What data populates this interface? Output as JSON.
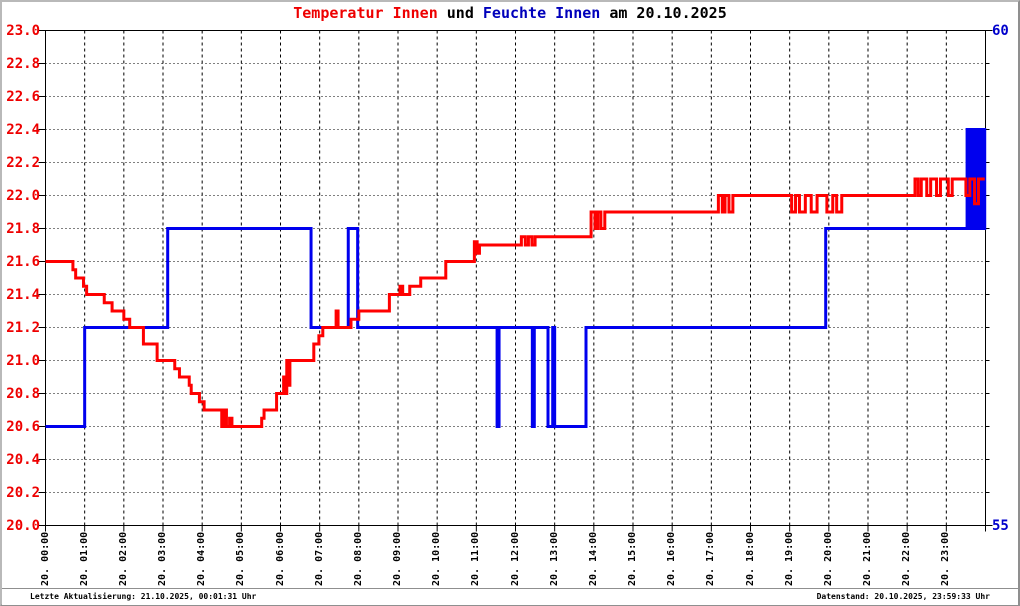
{
  "title": {
    "part1": "Temperatur Innen",
    "part2": " und ",
    "part3": "Feuchte Innen",
    "part4": " am 20.10.2025"
  },
  "status_bar": {
    "left": "Letzte Aktualisierung: 21.10.2025, 00:01:31 Uhr",
    "right": "Datenstand: 20.10.2025, 23:59:33 Uhr"
  },
  "colors": {
    "temperature": "#ff0000",
    "temperature_text": "#ee0000",
    "humidity": "#0000ee",
    "humidity_text": "#0000cc",
    "grid": "#000000",
    "background": "#ffffff"
  },
  "chart_data": {
    "type": "line",
    "title": "Temperatur Innen und Feuchte Innen am 20.10.2025",
    "grid": true,
    "legend": "none",
    "x_axis": {
      "range_hours": [
        0,
        24
      ],
      "tick_hours": [
        0,
        1,
        2,
        3,
        4,
        5,
        6,
        7,
        8,
        9,
        10,
        11,
        12,
        13,
        14,
        15,
        16,
        17,
        18,
        19,
        20,
        21,
        22,
        23
      ],
      "labels": [
        "20. 00:00",
        "20. 01:00",
        "20. 02:00",
        "20. 03:00",
        "20. 04:00",
        "20. 05:00",
        "20. 06:00",
        "20. 07:00",
        "20. 08:00",
        "20. 09:00",
        "20. 10:00",
        "20. 11:00",
        "20. 12:00",
        "20. 13:00",
        "20. 14:00",
        "20. 15:00",
        "20. 16:00",
        "20. 17:00",
        "20. 18:00",
        "20. 19:00",
        "20. 20:00",
        "20. 21:00",
        "20. 22:00",
        "20. 23:00"
      ]
    },
    "y_left": {
      "label_color": "#ee0000",
      "min": 20.0,
      "max": 23.0,
      "step": 0.2,
      "ticks": [
        "23.0",
        "22.8",
        "22.6",
        "22.4",
        "22.2",
        "22.0",
        "21.8",
        "21.6",
        "21.4",
        "21.2",
        "21.0",
        "20.8",
        "20.6",
        "20.4",
        "20.2",
        "20.0"
      ]
    },
    "y_right": {
      "label_color": "#0000cc",
      "min": 55,
      "max": 60,
      "ticks": [
        "60",
        "55"
      ]
    },
    "series": [
      {
        "id": "temperature-line",
        "name": "Temperatur Innen",
        "axis": "left",
        "color": "#ff0000",
        "mode": "step",
        "points": [
          [
            0.0,
            21.6
          ],
          [
            0.7,
            21.55
          ],
          [
            0.77,
            21.5
          ],
          [
            0.97,
            21.45
          ],
          [
            1.05,
            21.4
          ],
          [
            1.5,
            21.35
          ],
          [
            1.7,
            21.3
          ],
          [
            2.0,
            21.25
          ],
          [
            2.15,
            21.2
          ],
          [
            2.5,
            21.1
          ],
          [
            2.85,
            21.0
          ],
          [
            3.3,
            20.95
          ],
          [
            3.42,
            20.9
          ],
          [
            3.67,
            20.85
          ],
          [
            3.72,
            20.8
          ],
          [
            3.93,
            20.75
          ],
          [
            4.05,
            20.7
          ],
          [
            4.5,
            20.6
          ],
          [
            4.56,
            20.7
          ],
          [
            4.62,
            20.6
          ],
          [
            4.7,
            20.65
          ],
          [
            4.76,
            20.6
          ],
          [
            5.52,
            20.65
          ],
          [
            5.58,
            20.7
          ],
          [
            5.9,
            20.8
          ],
          [
            6.08,
            20.9
          ],
          [
            6.12,
            20.8
          ],
          [
            6.16,
            21.0
          ],
          [
            6.2,
            20.85
          ],
          [
            6.24,
            21.0
          ],
          [
            6.85,
            21.1
          ],
          [
            6.98,
            21.15
          ],
          [
            7.08,
            21.2
          ],
          [
            7.42,
            21.3
          ],
          [
            7.47,
            21.2
          ],
          [
            7.8,
            21.25
          ],
          [
            8.0,
            21.3
          ],
          [
            8.78,
            21.4
          ],
          [
            9.05,
            21.45
          ],
          [
            9.12,
            21.4
          ],
          [
            9.3,
            21.45
          ],
          [
            9.58,
            21.5
          ],
          [
            10.22,
            21.6
          ],
          [
            10.95,
            21.72
          ],
          [
            11.02,
            21.65
          ],
          [
            11.08,
            21.7
          ],
          [
            12.15,
            21.75
          ],
          [
            12.25,
            21.7
          ],
          [
            12.33,
            21.75
          ],
          [
            12.42,
            21.7
          ],
          [
            12.5,
            21.75
          ],
          [
            13.93,
            21.9
          ],
          [
            14.03,
            21.8
          ],
          [
            14.1,
            21.9
          ],
          [
            14.18,
            21.8
          ],
          [
            14.28,
            21.9
          ],
          [
            17.18,
            22.0
          ],
          [
            17.28,
            21.9
          ],
          [
            17.35,
            22.0
          ],
          [
            17.45,
            21.9
          ],
          [
            17.55,
            22.0
          ],
          [
            19.05,
            21.9
          ],
          [
            19.15,
            22.0
          ],
          [
            19.25,
            21.9
          ],
          [
            19.4,
            22.0
          ],
          [
            19.55,
            21.9
          ],
          [
            19.7,
            22.0
          ],
          [
            19.95,
            21.9
          ],
          [
            20.1,
            22.0
          ],
          [
            20.2,
            21.9
          ],
          [
            20.33,
            22.0
          ],
          [
            22.2,
            22.1
          ],
          [
            22.28,
            22.0
          ],
          [
            22.36,
            22.1
          ],
          [
            22.5,
            22.0
          ],
          [
            22.6,
            22.1
          ],
          [
            22.75,
            22.0
          ],
          [
            22.85,
            22.1
          ],
          [
            23.05,
            22.0
          ],
          [
            23.15,
            22.1
          ],
          [
            23.5,
            22.0
          ],
          [
            23.6,
            22.1
          ],
          [
            23.72,
            21.95
          ],
          [
            23.82,
            22.1
          ],
          [
            23.98,
            22.1
          ]
        ]
      },
      {
        "id": "humidity-line",
        "name": "Feuchte Innen",
        "axis": "right",
        "color": "#0000ee",
        "mode": "step",
        "points": [
          [
            0.0,
            56
          ],
          [
            1.0,
            57
          ],
          [
            3.12,
            58
          ],
          [
            6.78,
            57
          ],
          [
            7.73,
            58
          ],
          [
            7.97,
            57
          ],
          [
            11.53,
            56
          ],
          [
            11.58,
            57
          ],
          [
            12.43,
            56
          ],
          [
            12.48,
            57
          ],
          [
            12.83,
            56
          ],
          [
            12.95,
            57
          ],
          [
            13.0,
            56
          ],
          [
            13.8,
            57
          ],
          [
            19.92,
            58
          ],
          [
            23.53,
            59
          ],
          [
            23.58,
            58
          ],
          [
            23.62,
            59
          ],
          [
            23.66,
            58
          ],
          [
            23.7,
            59
          ],
          [
            23.74,
            58
          ],
          [
            23.78,
            59
          ],
          [
            23.82,
            58
          ],
          [
            23.86,
            59
          ],
          [
            23.9,
            58
          ],
          [
            23.94,
            59
          ],
          [
            23.98,
            58
          ]
        ]
      }
    ]
  }
}
